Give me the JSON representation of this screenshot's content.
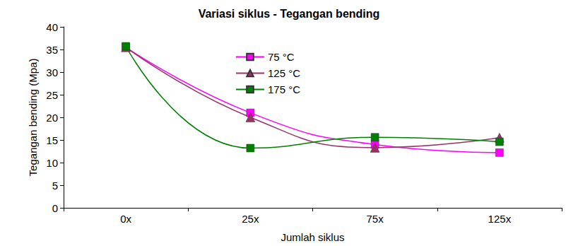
{
  "chart_data": {
    "type": "line",
    "title": "Variasi siklus - Tegangan bending",
    "x_label": "Jumlah siklus",
    "y_label": "Tegangan bending (Mpa)",
    "categories": [
      "0x",
      "25x",
      "75x",
      "125x"
    ],
    "series": [
      {
        "name": "75 °C",
        "color": "#ff00ff",
        "marker": "square",
        "values": [
          35.5,
          21.0,
          14.0,
          12.2
        ]
      },
      {
        "name": "125 °C",
        "color": "#993366",
        "marker": "triangle",
        "values": [
          35.5,
          20.0,
          13.3,
          15.5
        ]
      },
      {
        "name": "175 °C",
        "color": "#008000",
        "marker": "square",
        "values": [
          35.7,
          13.2,
          15.6,
          14.6
        ]
      }
    ],
    "ylim": [
      0,
      40
    ],
    "yticks": [
      0,
      5,
      10,
      15,
      20,
      25,
      30,
      35,
      40
    ],
    "grid": false,
    "legend": "upper center",
    "line_style": "solid"
  }
}
